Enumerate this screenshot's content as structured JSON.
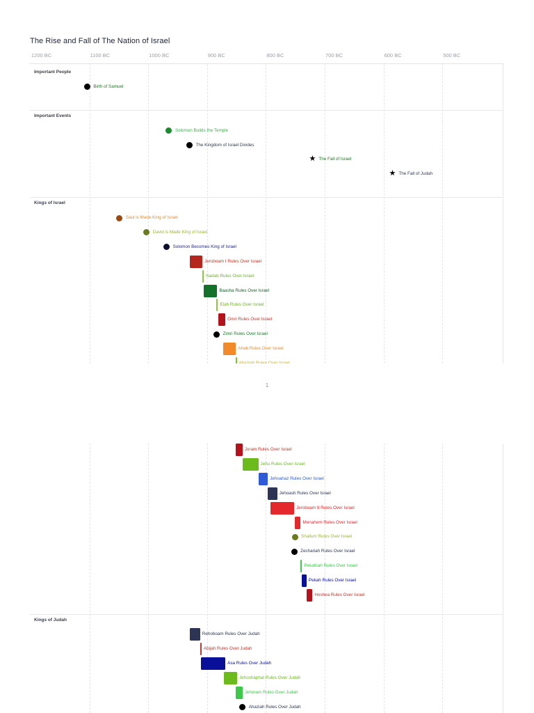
{
  "page": {
    "page_number": "1"
  },
  "chart_data": {
    "type": "timeline",
    "title": "The Rise and Fall of The Nation of Israel",
    "x_axis": {
      "unit": "year BC (decreasing to the right)",
      "range_bc": [
        1200,
        400
      ],
      "ticks": [
        {
          "bc": 1200,
          "label": "1200 BC"
        },
        {
          "bc": 1100,
          "label": "1100 BC"
        },
        {
          "bc": 1000,
          "label": "1000 BC"
        },
        {
          "bc": 900,
          "label": "900 BC"
        },
        {
          "bc": 800,
          "label": "800 BC"
        },
        {
          "bc": 700,
          "label": "700 BC"
        },
        {
          "bc": 600,
          "label": "600 BC"
        },
        {
          "bc": 500,
          "label": "500 BC"
        }
      ]
    },
    "panels": [
      {
        "name": "page-1",
        "row_range": [
          0,
          21
        ],
        "sections": [
          {
            "title": "Important People",
            "row": 0
          },
          {
            "title": "Important Events",
            "row": 3
          },
          {
            "title": "Kings of Israel",
            "row": 9
          }
        ]
      },
      {
        "name": "page-2",
        "row_range": [
          22.3,
          40
        ],
        "sections": [
          {
            "title": "Kings of Judah",
            "row": 34
          }
        ]
      }
    ],
    "items": [
      {
        "label": "Birth of Samuel",
        "row": 1,
        "shape": "dot",
        "start_bc": 1105,
        "dot": "#000000",
        "text": "#1a7a25"
      },
      {
        "label": "Solomon Builds the Temple",
        "row": 4,
        "shape": "dot",
        "start_bc": 966,
        "dot": "#1c8a2e",
        "text": "#3fb049"
      },
      {
        "label": "The Kingdom of Israel Divides",
        "row": 5,
        "shape": "dot",
        "start_bc": 931,
        "dot": "#000000",
        "text": "#333a4d"
      },
      {
        "label": "The Fall of Israel",
        "row": 6,
        "shape": "star",
        "start_bc": 722,
        "dot": "#000000",
        "text": "#1a7a25"
      },
      {
        "label": "The Fall of Judah",
        "row": 7,
        "shape": "star",
        "start_bc": 586,
        "dot": "#000000",
        "text": "#333a4d"
      },
      {
        "label": "Saul is Made King of Israel",
        "row": 10,
        "shape": "dot",
        "start_bc": 1050,
        "dot": "#9c4a12",
        "text": "#e98c2f"
      },
      {
        "label": "David is Made King of Israel",
        "row": 11,
        "shape": "dot",
        "start_bc": 1004,
        "dot": "#6b7a1c",
        "text": "#9fb336"
      },
      {
        "label": "Solomon Becomes King of Israel",
        "row": 12,
        "shape": "dot",
        "start_bc": 970,
        "dot": "#0d0d30",
        "text": "#1a1f8a"
      },
      {
        "label": "Jeroboam I Rules Over Israel",
        "row": 13,
        "shape": "bar",
        "start_bc": 931,
        "end_bc": 909,
        "color": "#b5271e",
        "text": "#c0392b"
      },
      {
        "label": "Nadab Rules Over Israel",
        "row": 14,
        "shape": "bar",
        "start_bc": 909,
        "end_bc": 907,
        "color": "#8ec63f",
        "text": "#6fb32e"
      },
      {
        "label": "Baasha Rules Over Israel",
        "row": 15,
        "shape": "bar",
        "start_bc": 907,
        "end_bc": 884,
        "color": "#14712a",
        "text": "#1a5c28"
      },
      {
        "label": "Elah Rules Over Israel",
        "row": 16,
        "shape": "bar",
        "start_bc": 885,
        "end_bc": 883,
        "color": "#8ec63f",
        "text": "#6fb32e"
      },
      {
        "label": "Omri Rules Over Israel",
        "row": 17,
        "shape": "bar",
        "start_bc": 882,
        "end_bc": 870,
        "color": "#b5121b",
        "text": "#c0392b"
      },
      {
        "label": "Zimri Rules Over Israel",
        "row": 18,
        "shape": "dot",
        "start_bc": 885,
        "dot": "#000000",
        "text": "#1a7a25"
      },
      {
        "label": "Ahab Rules Over Israel",
        "row": 19,
        "shape": "bar",
        "start_bc": 874,
        "end_bc": 852,
        "color": "#f28a2a",
        "text": "#f28a2a"
      },
      {
        "label": "Ahaziah Rules Over Israel",
        "row": 20,
        "shape": "bar",
        "start_bc": 853,
        "end_bc": 851,
        "color": "#7cc42a",
        "text": "#c2b62a"
      },
      {
        "label": "Joram Rules Over Israel",
        "row": 22.3,
        "shape": "bar",
        "start_bc": 852,
        "end_bc": 841,
        "color": "#b5121b",
        "text": "#c0392b"
      },
      {
        "label": "Jehu Rules Over Israel",
        "row": 23.3,
        "shape": "bar",
        "start_bc": 841,
        "end_bc": 814,
        "color": "#6cbb1c",
        "text": "#6cbb1c"
      },
      {
        "label": "Jehoahaz Rules Over Israel",
        "row": 24.3,
        "shape": "bar",
        "start_bc": 814,
        "end_bc": 798,
        "color": "#2f5bd8",
        "text": "#2f5bd8"
      },
      {
        "label": "Jehoash Rules Over Israel",
        "row": 25.3,
        "shape": "bar",
        "start_bc": 798,
        "end_bc": 782,
        "color": "#2c3654",
        "text": "#2c3654"
      },
      {
        "label": "Jeroboam II Rules Over Israel",
        "row": 26.3,
        "shape": "bar",
        "start_bc": 793,
        "end_bc": 753,
        "color": "#e5282c",
        "text": "#e5282c"
      },
      {
        "label": "Menahem Rules Over Israel",
        "row": 27.3,
        "shape": "bar",
        "start_bc": 752,
        "end_bc": 742,
        "color": "#e5282c",
        "text": "#e5282c"
      },
      {
        "label": "Shallum Rules Over Israel",
        "row": 28.3,
        "shape": "dot",
        "start_bc": 752,
        "dot": "#6b7a1c",
        "text": "#9fb336"
      },
      {
        "label": "Zechariah Rules Over Israel",
        "row": 29.3,
        "shape": "dot",
        "start_bc": 753,
        "dot": "#000000",
        "text": "#2c3654"
      },
      {
        "label": "Pekahiah Rules Over Israel",
        "row": 30.3,
        "shape": "bar",
        "start_bc": 742,
        "end_bc": 740,
        "color": "#3cc94a",
        "text": "#3cc94a"
      },
      {
        "label": "Pekah Rules Over Israel",
        "row": 31.3,
        "shape": "bar",
        "start_bc": 740,
        "end_bc": 732,
        "color": "#0a0f9a",
        "text": "#0a0f9a"
      },
      {
        "label": "Hoshea Rules Over Israel",
        "row": 32.3,
        "shape": "bar",
        "start_bc": 732,
        "end_bc": 722,
        "color": "#b5121b",
        "text": "#c0392b"
      },
      {
        "label": "Rehoboam Rules Over Judah",
        "row": 35,
        "shape": "bar",
        "start_bc": 931,
        "end_bc": 913,
        "color": "#2c3654",
        "text": "#2c3654"
      },
      {
        "label": "Abijah Rules Over Judah",
        "row": 36,
        "shape": "bar",
        "start_bc": 913,
        "end_bc": 911,
        "color": "#c0392b",
        "text": "#c0392b"
      },
      {
        "label": "Asa Rules Over Judah",
        "row": 37,
        "shape": "bar",
        "start_bc": 911,
        "end_bc": 870,
        "color": "#0a0f9a",
        "text": "#0a0f9a"
      },
      {
        "label": "Jehoshaphat Rules Over Judah",
        "row": 38,
        "shape": "bar",
        "start_bc": 872,
        "end_bc": 850,
        "color": "#6cbb1c",
        "text": "#6cbb1c"
      },
      {
        "label": "Jehoram Rules Over Judah",
        "row": 39,
        "shape": "bar",
        "start_bc": 853,
        "end_bc": 841,
        "color": "#3cc94a",
        "text": "#3cc94a"
      },
      {
        "label": "Ahaziah Rules Over Judah",
        "row": 40,
        "shape": "dot",
        "start_bc": 841,
        "dot": "#000000",
        "text": "#2c3654"
      }
    ]
  }
}
